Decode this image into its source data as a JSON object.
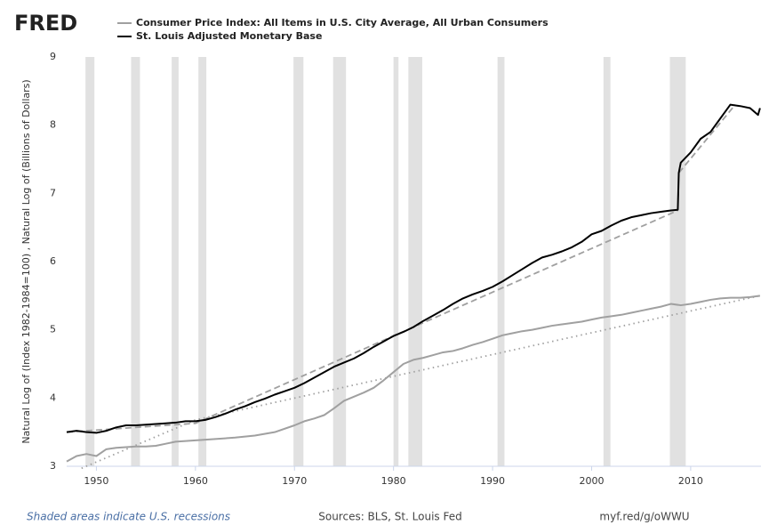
{
  "chart_data": {
    "type": "line",
    "logo": "FRED",
    "y_label": "Natural Log of (Index 1982-1984=100) , Natural Log of (Billions of Dollars)",
    "note": "Shaded areas indicate U.S. recessions",
    "source": "Sources: BLS, St. Louis Fed",
    "link": "myf.red/g/oWWU",
    "xlim": [
      1947,
      2017.1
    ],
    "xticks": [
      1950,
      1960,
      1970,
      1980,
      1990,
      2000,
      2010
    ],
    "ylim": [
      3,
      9
    ],
    "yticks": [
      3,
      4,
      5,
      6,
      7,
      8,
      9
    ],
    "grid": false,
    "recession_color": "#e1e1e1",
    "recessions": [
      [
        1948.9,
        1949.8
      ],
      [
        1953.5,
        1954.4
      ],
      [
        1957.6,
        1958.3
      ],
      [
        1960.3,
        1961.1
      ],
      [
        1969.9,
        1970.9
      ],
      [
        1973.9,
        1975.2
      ],
      [
        1980.0,
        1980.5
      ],
      [
        1981.5,
        1982.9
      ],
      [
        1990.5,
        1991.2
      ],
      [
        2001.2,
        2001.9
      ],
      [
        2007.9,
        2009.5
      ]
    ],
    "series": [
      {
        "name": "Consumer Price Index: All Items in U.S. City Average, All Urban Consumers",
        "color": "#a0a0a0",
        "x": [
          1947,
          1948,
          1949,
          1950,
          1951,
          1952,
          1953,
          1954,
          1955,
          1956,
          1957,
          1958,
          1959,
          1960,
          1962,
          1964,
          1966,
          1968,
          1970,
          1971,
          1972,
          1973,
          1974,
          1975,
          1976,
          1977,
          1978,
          1979,
          1980,
          1981,
          1982,
          1983,
          1984,
          1985,
          1986,
          1987,
          1988,
          1989,
          1990,
          1991,
          1992,
          1993,
          1994,
          1995,
          1996,
          1997,
          1998,
          1999,
          2000,
          2001,
          2002,
          2003,
          2004,
          2005,
          2006,
          2007,
          2008,
          2009,
          2010,
          2011,
          2012,
          2013,
          2014,
          2015,
          2016,
          2017
        ],
        "values": [
          3.07,
          3.15,
          3.18,
          3.15,
          3.25,
          3.27,
          3.28,
          3.29,
          3.29,
          3.3,
          3.33,
          3.36,
          3.37,
          3.38,
          3.4,
          3.42,
          3.45,
          3.5,
          3.6,
          3.66,
          3.7,
          3.75,
          3.85,
          3.96,
          4.02,
          4.08,
          4.15,
          4.26,
          4.38,
          4.5,
          4.56,
          4.59,
          4.63,
          4.67,
          4.69,
          4.73,
          4.78,
          4.82,
          4.87,
          4.92,
          4.95,
          4.98,
          5.0,
          5.03,
          5.06,
          5.08,
          5.1,
          5.12,
          5.15,
          5.18,
          5.2,
          5.22,
          5.25,
          5.28,
          5.31,
          5.34,
          5.38,
          5.36,
          5.38,
          5.41,
          5.44,
          5.46,
          5.47,
          5.47,
          5.48,
          5.5
        ]
      },
      {
        "name": "St. Louis Adjusted Monetary Base",
        "color": "#000000",
        "x": [
          1947,
          1948,
          1949,
          1950,
          1951,
          1952,
          1953,
          1954,
          1955,
          1956,
          1957,
          1958,
          1959,
          1960,
          1961,
          1962,
          1963,
          1964,
          1965,
          1966,
          1967,
          1968,
          1969,
          1970,
          1971,
          1972,
          1973,
          1974,
          1975,
          1976,
          1977,
          1978,
          1979,
          1980,
          1981,
          1982,
          1983,
          1984,
          1985,
          1986,
          1987,
          1988,
          1989,
          1990,
          1991,
          1992,
          1993,
          1994,
          1995,
          1996,
          1997,
          1998,
          1999,
          2000,
          2001,
          2002,
          2003,
          2004,
          2005,
          2006,
          2007,
          2008,
          2008.7,
          2008.8,
          2009,
          2010,
          2011,
          2012,
          2013,
          2014,
          2015,
          2016,
          2016.8,
          2017
        ],
        "values": [
          3.5,
          3.52,
          3.5,
          3.49,
          3.52,
          3.57,
          3.6,
          3.6,
          3.61,
          3.62,
          3.63,
          3.64,
          3.66,
          3.66,
          3.68,
          3.72,
          3.77,
          3.83,
          3.88,
          3.94,
          3.99,
          4.05,
          4.1,
          4.15,
          4.22,
          4.3,
          4.38,
          4.46,
          4.52,
          4.58,
          4.66,
          4.75,
          4.83,
          4.91,
          4.97,
          5.04,
          5.13,
          5.21,
          5.29,
          5.38,
          5.46,
          5.52,
          5.57,
          5.63,
          5.71,
          5.8,
          5.89,
          5.98,
          6.06,
          6.1,
          6.15,
          6.21,
          6.29,
          6.4,
          6.45,
          6.53,
          6.6,
          6.65,
          6.68,
          6.71,
          6.73,
          6.75,
          6.76,
          7.3,
          7.45,
          7.6,
          7.8,
          7.9,
          8.1,
          8.3,
          8.28,
          8.25,
          8.15,
          8.25
        ]
      }
    ],
    "trendlines": [
      {
        "color": "#a0a0a0",
        "dash": "7 4",
        "x": [
          1947,
          1960,
          2008.7
        ],
        "values": [
          3.5,
          3.63,
          6.75
        ]
      },
      {
        "color": "#a0a0a0",
        "dash": "7 4",
        "x": [
          2008.8,
          2014.5
        ],
        "values": [
          7.3,
          8.3
        ]
      },
      {
        "color": "#a0a0a0",
        "dash": "1.5 4",
        "x": [
          1948.5,
          1960,
          2017
        ],
        "values": [
          2.97,
          3.68,
          5.5
        ]
      }
    ]
  }
}
